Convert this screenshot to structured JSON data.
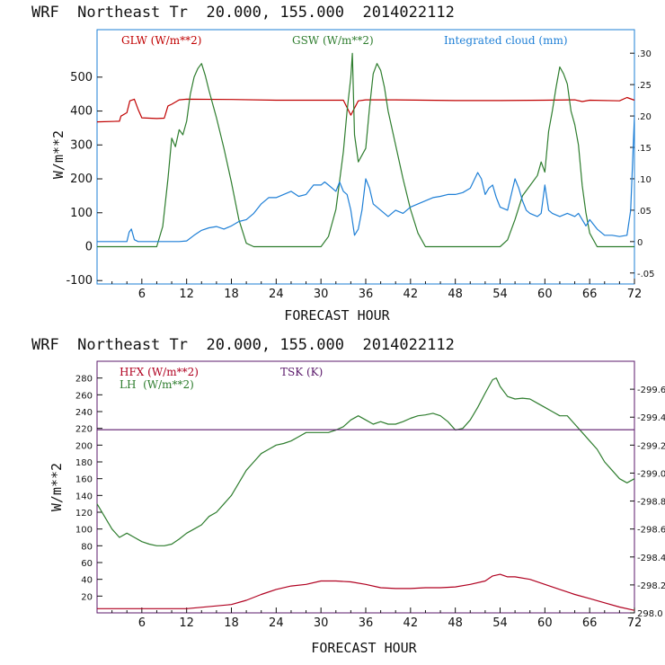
{
  "chart_data": [
    {
      "type": "line",
      "title": "WRF  Northeast Tr  20.000, 155.000  2014022112",
      "xlabel": "FORECAST HOUR",
      "ylabel": "W/m**2",
      "xlim": [
        0,
        72
      ],
      "ylim": [
        -110,
        640
      ],
      "x_ticks": [
        6,
        12,
        18,
        24,
        30,
        36,
        42,
        48,
        54,
        60,
        66,
        72
      ],
      "y_ticks": [
        -100,
        0,
        100,
        200,
        300,
        400,
        500
      ],
      "y_tick_labels": [
        "-100",
        "0",
        "100",
        "200",
        "300",
        "400",
        "500"
      ],
      "y2lim": [
        -0.0675,
        0.3375
      ],
      "y2_ticks": [
        -0.05,
        0,
        0.05,
        0.1,
        0.15,
        0.2,
        0.25,
        0.3
      ],
      "y2_tick_labels": [
        "-.05",
        "0",
        ".05",
        ".10",
        ".15",
        ".20",
        ".25",
        ".30"
      ],
      "series": [
        {
          "name": "GLW (W/m**2)",
          "color": "#c00000",
          "axis": "left",
          "x": [
            0,
            3,
            3.2,
            4,
            4.4,
            5,
            5.5,
            6,
            7,
            8,
            9,
            9.5,
            10,
            11,
            12,
            18,
            24,
            30,
            33,
            34,
            35,
            36,
            40,
            48,
            54,
            60,
            64,
            65,
            66,
            70,
            71,
            72
          ],
          "y": [
            368,
            370,
            385,
            395,
            430,
            435,
            405,
            380,
            379,
            378,
            379,
            415,
            420,
            433,
            435,
            434,
            432,
            432,
            432,
            388,
            430,
            433,
            433,
            431,
            431,
            432,
            433,
            428,
            432,
            430,
            440,
            432
          ]
        },
        {
          "name": "GSW (W/m**2)",
          "color": "#2e7d2e",
          "axis": "left",
          "x": [
            0,
            8,
            8.8,
            9.5,
            10,
            10.5,
            11,
            11.5,
            12,
            12.5,
            13,
            13.5,
            14,
            14.5,
            15,
            16,
            17,
            18,
            19,
            20,
            21,
            22,
            30,
            31,
            32,
            33,
            33.5,
            34,
            34.2,
            34.5,
            35,
            36,
            36.5,
            37,
            37.5,
            38,
            38.5,
            39,
            40,
            41,
            42,
            43,
            44,
            54,
            55,
            56,
            57,
            58,
            59,
            59.5,
            60,
            60.5,
            61,
            61.5,
            62,
            62.5,
            63,
            63.5,
            64,
            64.5,
            65,
            65.5,
            66,
            67,
            68,
            72
          ],
          "y": [
            0,
            0,
            60,
            200,
            320,
            295,
            345,
            330,
            370,
            450,
            500,
            525,
            540,
            505,
            460,
            380,
            290,
            190,
            80,
            10,
            0,
            0,
            0,
            30,
            110,
            280,
            400,
            500,
            570,
            330,
            250,
            290,
            410,
            510,
            540,
            520,
            470,
            400,
            300,
            200,
            110,
            40,
            0,
            0,
            20,
            80,
            150,
            180,
            210,
            250,
            220,
            340,
            400,
            470,
            530,
            510,
            480,
            400,
            360,
            300,
            180,
            100,
            40,
            0,
            0,
            0
          ]
        },
        {
          "name": "Integrated cloud (mm)",
          "color": "#1e7fd6",
          "axis": "right",
          "x": [
            0,
            4,
            4.3,
            4.6,
            5,
            5.5,
            6,
            7,
            8,
            9,
            10,
            11,
            12,
            13,
            14,
            15,
            16,
            17,
            18,
            19,
            20,
            21,
            22,
            23,
            24,
            25,
            26,
            27,
            28,
            29,
            30,
            30.5,
            31,
            32,
            32.5,
            33,
            33.5,
            34,
            34.5,
            35,
            35.5,
            36,
            36.5,
            37,
            38,
            39,
            40,
            41,
            42,
            43,
            44,
            45,
            46,
            47,
            48,
            49,
            50,
            51,
            51.5,
            52,
            52.5,
            53,
            53.5,
            54,
            55,
            56,
            56.5,
            57,
            57.5,
            58,
            59,
            59.5,
            60,
            60.5,
            61,
            62,
            63,
            64,
            64.5,
            65,
            65.5,
            66,
            67,
            68,
            69,
            70,
            71,
            71.5,
            72
          ],
          "y": [
            0,
            0,
            0.015,
            0.02,
            0.003,
            0,
            0,
            0,
            0,
            0,
            0,
            0,
            0.001,
            0.01,
            0.018,
            0.022,
            0.024,
            0.02,
            0.025,
            0.032,
            0.035,
            0.045,
            0.06,
            0.07,
            0.07,
            0.075,
            0.08,
            0.072,
            0.075,
            0.09,
            0.09,
            0.095,
            0.09,
            0.08,
            0.095,
            0.08,
            0.075,
            0.05,
            0.01,
            0.02,
            0.05,
            0.1,
            0.085,
            0.06,
            0.05,
            0.04,
            0.05,
            0.045,
            0.055,
            0.06,
            0.065,
            0.07,
            0.072,
            0.075,
            0.075,
            0.078,
            0.085,
            0.11,
            0.1,
            0.075,
            0.085,
            0.09,
            0.07,
            0.055,
            0.05,
            0.1,
            0.085,
            0.065,
            0.05,
            0.045,
            0.04,
            0.045,
            0.09,
            0.05,
            0.045,
            0.04,
            0.045,
            0.04,
            0.045,
            0.035,
            0.025,
            0.035,
            0.02,
            0.01,
            0.01,
            0.008,
            0.01,
            0.05,
            0.2
          ]
        }
      ]
    },
    {
      "type": "line",
      "title": "WRF  Northeast Tr  20.000, 155.000  2014022112",
      "xlabel": "FORECAST HOUR",
      "ylabel": "W/m**2",
      "xlim": [
        0,
        72
      ],
      "ylim": [
        0,
        300
      ],
      "x_ticks": [
        6,
        12,
        18,
        24,
        30,
        36,
        42,
        48,
        54,
        60,
        66,
        72
      ],
      "y_ticks": [
        20,
        40,
        60,
        80,
        100,
        120,
        140,
        160,
        180,
        200,
        220,
        240,
        260,
        280
      ],
      "y_tick_labels": [
        "20",
        "40",
        "60",
        "80",
        "100",
        "120",
        "140",
        "160",
        "180",
        "200",
        "220",
        "240",
        "260",
        "280"
      ],
      "y2lim": [
        298.0,
        299.8
      ],
      "y2_ticks": [
        298.0,
        298.2,
        298.4,
        298.6,
        298.8,
        299.0,
        299.2,
        299.4,
        299.6
      ],
      "y2_tick_labels": [
        "298.0",
        "-298.2",
        "-298.4",
        "-298.6",
        "-298.8",
        "-299.0",
        "-299.2",
        "-299.4",
        "-299.6"
      ],
      "series": [
        {
          "name": "HFX (W/m**2)",
          "color": "#b00020",
          "axis": "left",
          "x": [
            0,
            6,
            12,
            18,
            20,
            22,
            24,
            26,
            28,
            30,
            32,
            34,
            36,
            38,
            40,
            42,
            44,
            46,
            48,
            50,
            52,
            53,
            54,
            55,
            56,
            58,
            60,
            62,
            64,
            66,
            68,
            70,
            72
          ],
          "y": [
            5,
            5,
            5,
            10,
            15,
            22,
            28,
            32,
            34,
            38,
            38,
            37,
            34,
            30,
            29,
            29,
            30,
            30,
            31,
            34,
            38,
            44,
            46,
            43,
            43,
            40,
            34,
            28,
            22,
            17,
            12,
            7,
            3
          ]
        },
        {
          "name": "LH  (W/m**2)",
          "color": "#2e7d2e",
          "axis": "left",
          "x": [
            0,
            1,
            2,
            3,
            4,
            5,
            6,
            7,
            8,
            9,
            10,
            11,
            12,
            13,
            14,
            15,
            16,
            17,
            18,
            19,
            20,
            21,
            22,
            23,
            24,
            25,
            26,
            27,
            28,
            29,
            30,
            31,
            32,
            33,
            34,
            35,
            36,
            37,
            38,
            39,
            40,
            41,
            42,
            43,
            44,
            45,
            46,
            47,
            48,
            49,
            50,
            51,
            52,
            52.5,
            53,
            53.5,
            54,
            55,
            56,
            57,
            58,
            59,
            60,
            61,
            62,
            63,
            64,
            65,
            66,
            67,
            68,
            69,
            70,
            71,
            72
          ],
          "y": [
            130,
            115,
            100,
            90,
            95,
            90,
            85,
            82,
            80,
            80,
            82,
            88,
            95,
            100,
            105,
            115,
            120,
            130,
            140,
            155,
            170,
            180,
            190,
            195,
            200,
            202,
            205,
            210,
            215,
            215,
            215,
            215,
            218,
            222,
            230,
            235,
            230,
            225,
            228,
            225,
            225,
            228,
            232,
            235,
            236,
            238,
            235,
            228,
            218,
            220,
            230,
            245,
            262,
            270,
            278,
            280,
            270,
            258,
            255,
            256,
            255,
            250,
            245,
            240,
            235,
            235,
            225,
            215,
            205,
            195,
            180,
            170,
            160,
            155,
            160
          ]
        },
        {
          "name": "TSK (K)",
          "color": "#5b1a6b",
          "axis": "right",
          "x": [
            0,
            72
          ],
          "y": [
            299.31,
            299.31
          ]
        }
      ]
    }
  ]
}
